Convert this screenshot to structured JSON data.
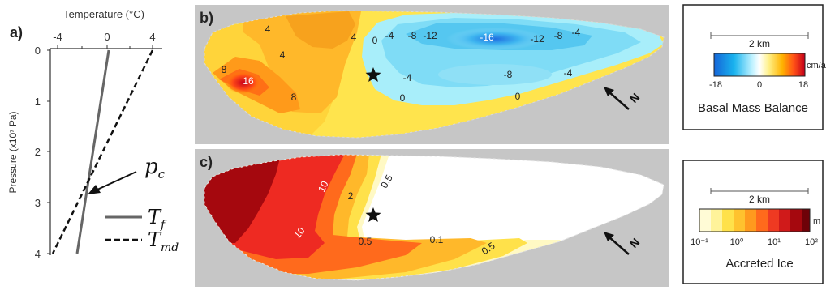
{
  "panel_a": {
    "label": "a)",
    "x_title": "Temperature (°C)",
    "x_ticks": [
      "-4",
      "0",
      "4"
    ],
    "y_title": "Pressure (x10⁷ Pa)",
    "y_ticks": [
      "0",
      "1",
      "2",
      "3",
      "4"
    ],
    "pc_label": "p",
    "pc_sub": "c",
    "legend": [
      {
        "sym": "T",
        "sub": "f"
      },
      {
        "sym": "T",
        "sub": "md"
      }
    ]
  },
  "panel_b": {
    "label": "b)",
    "contour_labels": [
      "4",
      "4",
      "4",
      "8",
      "16",
      "8",
      "0",
      "-4",
      "-8",
      "-12",
      "-16",
      "-12",
      "-8",
      "-4",
      "-4",
      "-8",
      "-4",
      "0",
      "0"
    ]
  },
  "panel_c": {
    "label": "c)",
    "contour_labels": [
      "10",
      "2",
      "0.5",
      "10",
      "0.5",
      "0.1",
      "0.5"
    ]
  },
  "north_label": "N",
  "legend_b": {
    "scale_label": "2 km",
    "unit": "cm/a",
    "ticks": [
      "-18",
      "0",
      "18"
    ],
    "title": "Basal Mass Balance"
  },
  "legend_c": {
    "scale_label": "2 km",
    "unit": "m",
    "ticks": [
      "10⁻¹",
      "10⁰",
      "10¹",
      "10²"
    ],
    "title": "Accreted Ice"
  },
  "colors": {
    "gray_bg": "#c6c6c6",
    "line_tf": "#555555",
    "line_tmd": "#111111"
  }
}
